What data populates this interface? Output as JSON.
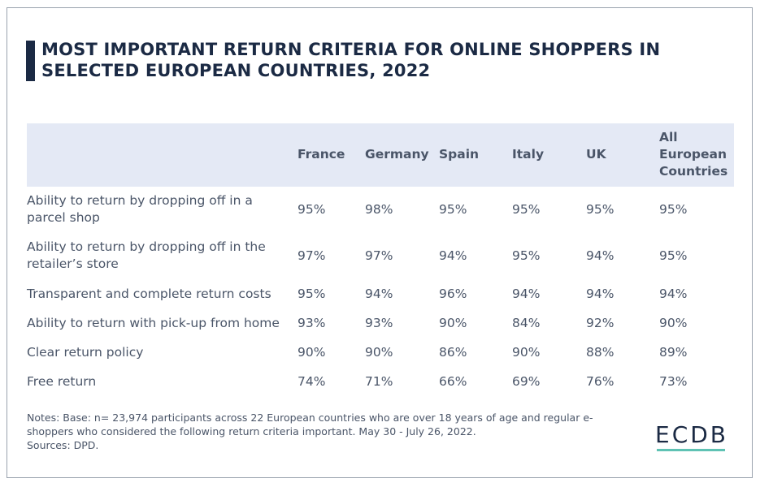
{
  "title": "MOST IMPORTANT RETURN CRITERIA FOR ONLINE SHOPPERS IN SELECTED EUROPEAN COUNTRIES, 2022",
  "chart_data": {
    "type": "table",
    "title": "MOST IMPORTANT RETURN CRITERIA FOR ONLINE SHOPPERS IN SELECTED EUROPEAN COUNTRIES, 2022",
    "columns": [
      "France",
      "Germany",
      "Spain",
      "Italy",
      "UK",
      "All European Countries"
    ],
    "column_lines": [
      [
        "France"
      ],
      [
        "Germany"
      ],
      [
        "Spain"
      ],
      [
        "Italy"
      ],
      [
        "UK"
      ],
      [
        "All",
        "European",
        "Countries"
      ]
    ],
    "rows": [
      {
        "label": "Ability to return by dropping off in a parcel shop",
        "lines": [
          "Ability to return by dropping off in a",
          "parcel shop"
        ],
        "values": [
          "95%",
          "98%",
          "95%",
          "95%",
          "95%",
          "95%"
        ]
      },
      {
        "label": "Ability to return by dropping off in the retailer’s store",
        "lines": [
          "Ability to return by dropping off in the",
          "retailer’s store"
        ],
        "values": [
          "97%",
          "97%",
          "94%",
          "95%",
          "94%",
          "95%"
        ]
      },
      {
        "label": "Transparent and complete return costs",
        "lines": [
          "Transparent and complete return costs"
        ],
        "values": [
          "95%",
          "94%",
          "96%",
          "94%",
          "94%",
          "94%"
        ]
      },
      {
        "label": "Ability to return with pick-up from home",
        "lines": [
          "Ability to return with pick-up from home"
        ],
        "values": [
          "93%",
          "93%",
          "90%",
          "84%",
          "92%",
          "90%"
        ]
      },
      {
        "label": "Clear return policy",
        "lines": [
          "Clear return policy"
        ],
        "values": [
          "90%",
          "90%",
          "86%",
          "90%",
          "88%",
          "89%"
        ]
      },
      {
        "label": "Free return",
        "lines": [
          "Free return"
        ],
        "values": [
          "74%",
          "71%",
          "66%",
          "69%",
          "76%",
          "73%"
        ]
      }
    ]
  },
  "notes": {
    "line1": "Notes: Base: n= 23,974 participants across 22 European countries who are over 18 years of age and regular e-",
    "line2": "shoppers who considered the following return criteria important. May 30 - July 26, 2022.",
    "line3": "Sources: DPD."
  },
  "logo": "ECDB",
  "colors": {
    "title": "#1b2a44",
    "header_bg": "#e4e9f5",
    "text": "#4a5568",
    "logo_accent": "#5fc2b4"
  }
}
